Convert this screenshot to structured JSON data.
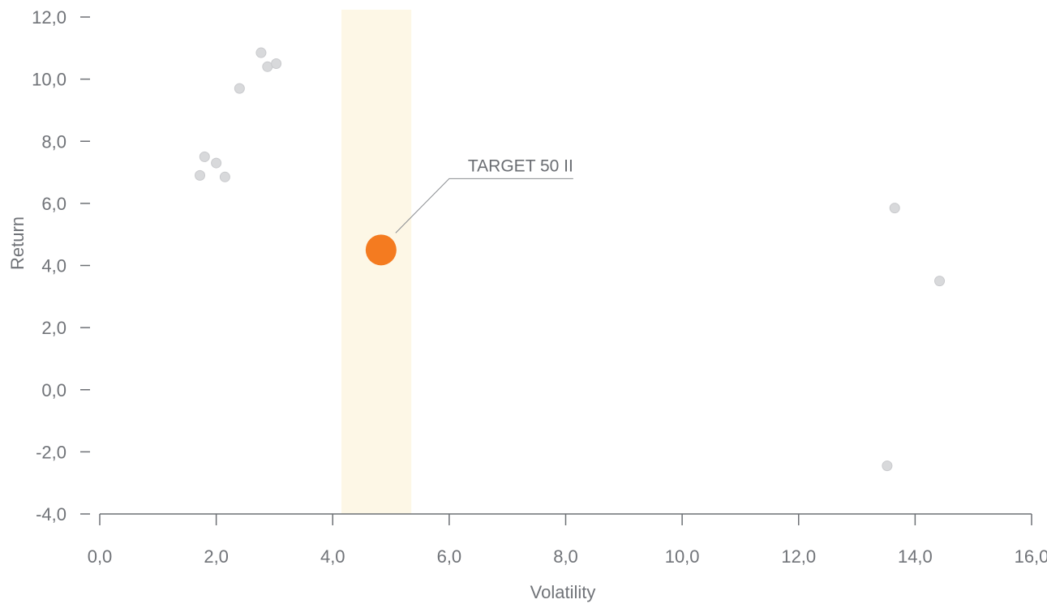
{
  "chart_data": {
    "type": "scatter",
    "xlabel": "Volatility",
    "ylabel": "Return",
    "xlim": [
      0,
      16
    ],
    "ylim": [
      -4,
      12
    ],
    "x_ticks": [
      0,
      2,
      4,
      6,
      8,
      10,
      12,
      14,
      16
    ],
    "y_ticks": [
      -4,
      -2,
      0,
      2,
      4,
      6,
      8,
      10,
      12
    ],
    "decimal_separator": ",",
    "grid": false,
    "highlight_band": {
      "x_from": 4.15,
      "x_to": 5.35,
      "color": "#fdf7e6"
    },
    "series": [
      {
        "role": "peers",
        "color": "#d8d9db",
        "points": [
          {
            "x": 1.72,
            "y": 6.9
          },
          {
            "x": 1.8,
            "y": 7.5
          },
          {
            "x": 2.0,
            "y": 7.3
          },
          {
            "x": 2.15,
            "y": 6.85
          },
          {
            "x": 2.4,
            "y": 9.7
          },
          {
            "x": 2.77,
            "y": 10.85
          },
          {
            "x": 2.88,
            "y": 10.4
          },
          {
            "x": 3.03,
            "y": 10.5
          },
          {
            "x": 13.52,
            "y": -2.45
          },
          {
            "x": 13.65,
            "y": 5.85
          },
          {
            "x": 14.42,
            "y": 3.5
          }
        ]
      },
      {
        "role": "highlight",
        "color": "#f47b20",
        "points": [
          {
            "x": 4.83,
            "y": 4.5,
            "label": "TARGET 50 II"
          }
        ]
      }
    ]
  }
}
